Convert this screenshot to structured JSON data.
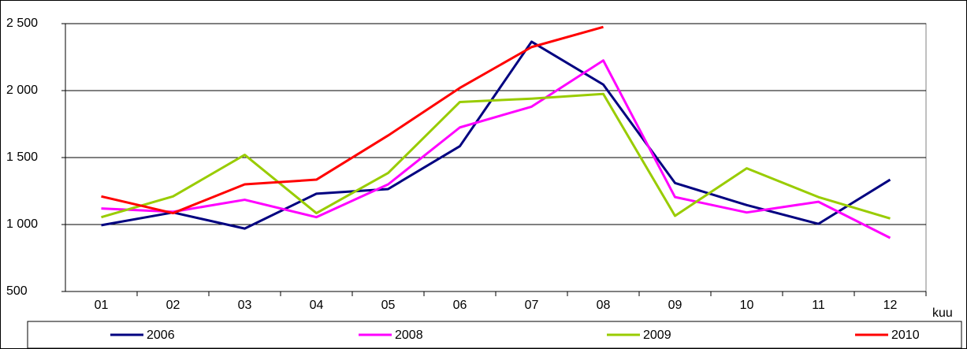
{
  "chart_data": {
    "type": "line",
    "categories": [
      "01",
      "02",
      "03",
      "04",
      "05",
      "06",
      "07",
      "08",
      "09",
      "10",
      "11",
      "12"
    ],
    "x_label": "kuu",
    "series": [
      {
        "name": "2006",
        "color": "#000080",
        "values": [
          995,
          1090,
          970,
          1230,
          1265,
          1585,
          2365,
          2045,
          1310,
          1145,
          1005,
          1335
        ]
      },
      {
        "name": "2008",
        "color": "#ff00ff",
        "values": [
          1120,
          1095,
          1185,
          1055,
          1300,
          1725,
          1880,
          2225,
          1205,
          1090,
          1170,
          900
        ]
      },
      {
        "name": "2009",
        "color": "#99cc00",
        "values": [
          1055,
          1210,
          1520,
          1085,
          1385,
          1915,
          1940,
          1975,
          1065,
          1420,
          1205,
          1045
        ]
      },
      {
        "name": "2010",
        "color": "#ff0000",
        "values": [
          1210,
          1085,
          1300,
          1335,
          1665,
          2020,
          2325,
          2475,
          null,
          null,
          null,
          null
        ]
      }
    ],
    "ylim": [
      500,
      2500
    ],
    "yticks": [
      {
        "value": 500,
        "label": "500"
      },
      {
        "value": 1000,
        "label": "1 000"
      },
      {
        "value": 1500,
        "label": "1 500"
      },
      {
        "value": 2000,
        "label": "2 000"
      },
      {
        "value": 2500,
        "label": "2 500"
      }
    ],
    "grid": true,
    "legend": "bottom"
  }
}
